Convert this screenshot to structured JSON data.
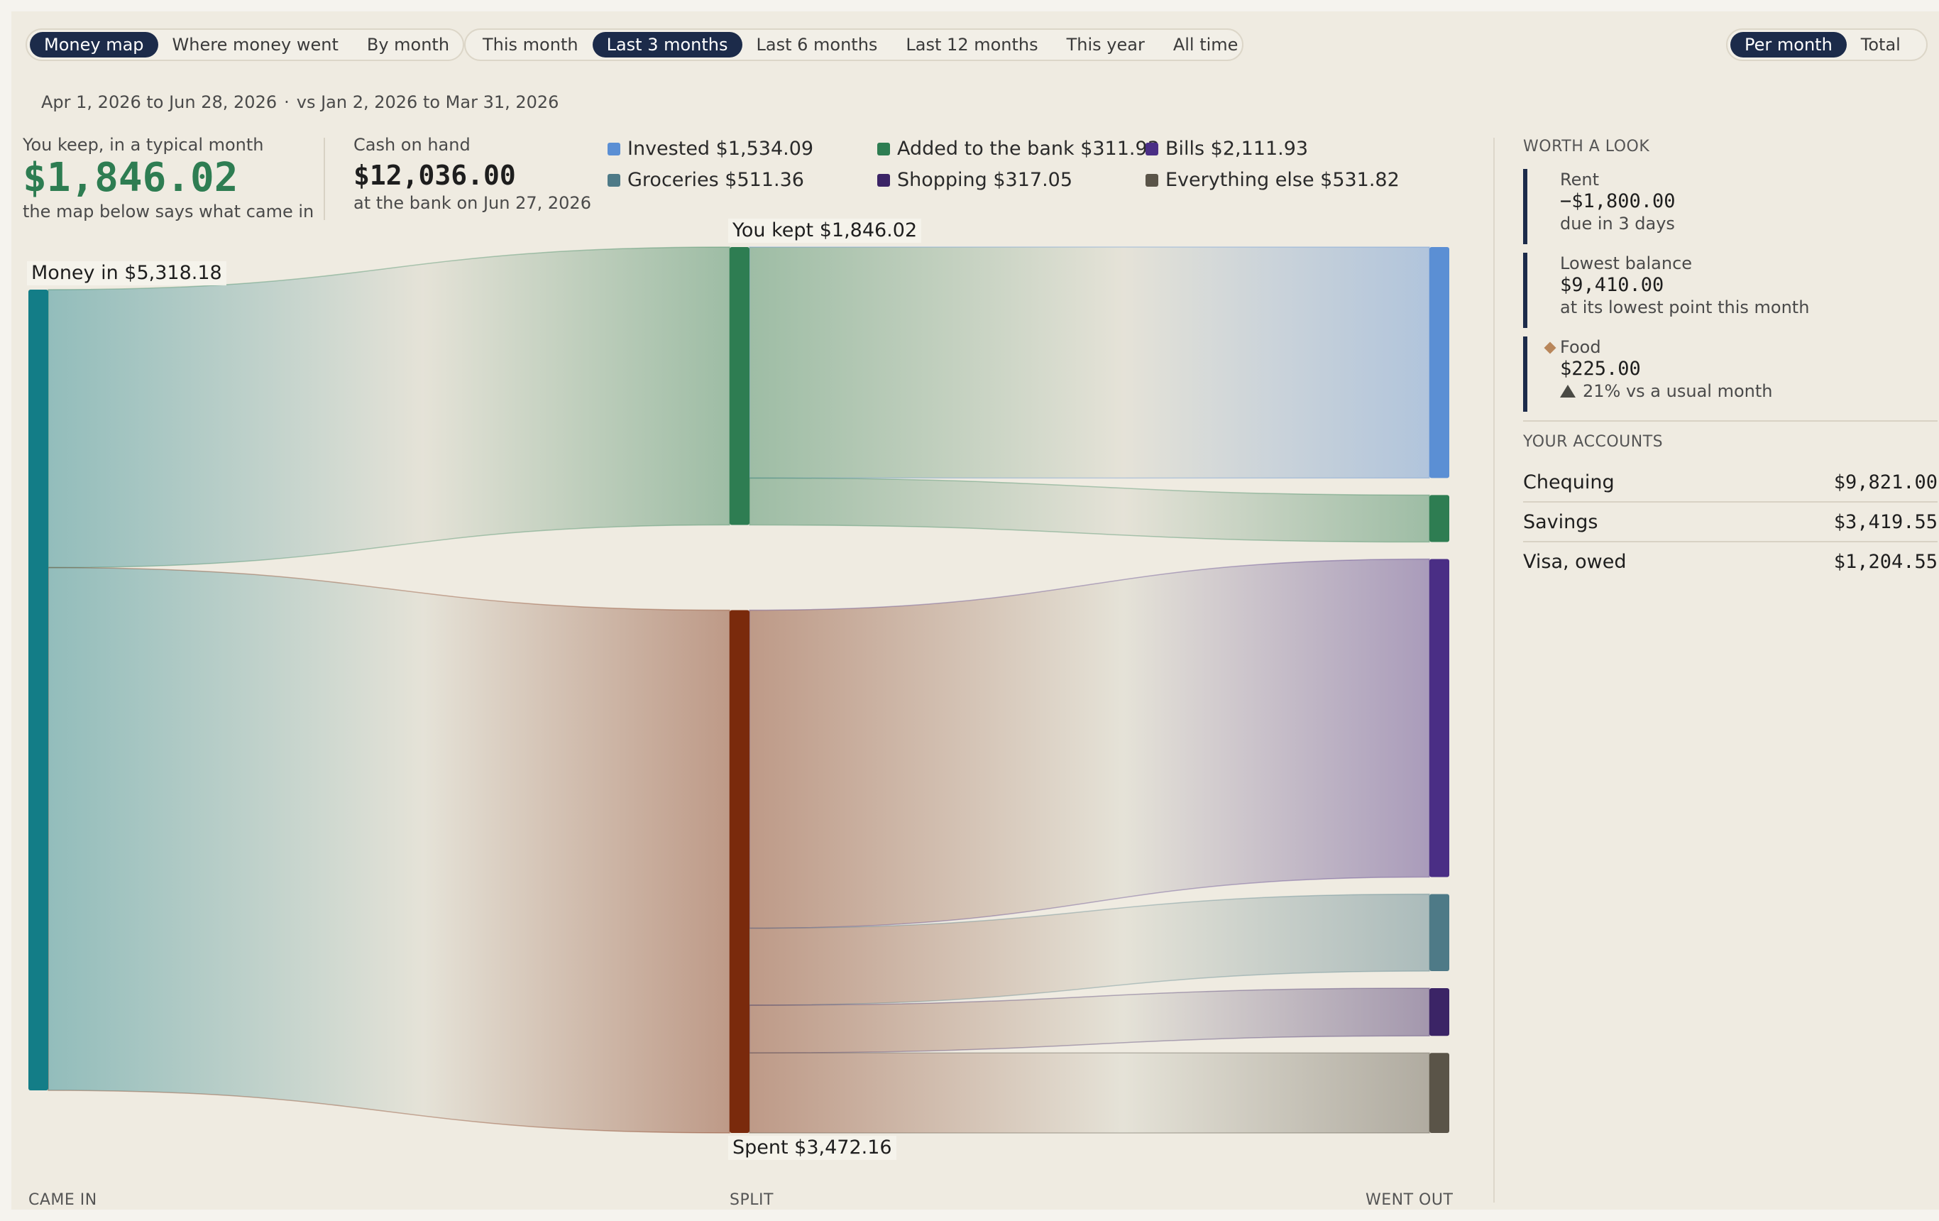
{
  "view_tabs": [
    {
      "label": "Money map",
      "active": true
    },
    {
      "label": "Where money went",
      "active": false
    },
    {
      "label": "By month",
      "active": false
    }
  ],
  "range_tabs": [
    {
      "label": "This month",
      "active": false
    },
    {
      "label": "Last 3 months",
      "active": true
    },
    {
      "label": "Last 6 months",
      "active": false
    },
    {
      "label": "Last 12 months",
      "active": false
    },
    {
      "label": "This year",
      "active": false
    },
    {
      "label": "All time",
      "active": false
    }
  ],
  "mode_tabs": [
    {
      "label": "Per month",
      "active": true
    },
    {
      "label": "Total",
      "active": false
    }
  ],
  "period": {
    "current": "Apr 1, 2026 to Jun 28, 2026",
    "separator": "·",
    "compare": "vs Jan 2, 2026 to Mar 31, 2026"
  },
  "kpi_keep": {
    "label": "You keep, in a typical month",
    "value": "$1,846.02",
    "sub": "the map below says what came in"
  },
  "kpi_cash": {
    "label": "Cash on hand",
    "value": "$12,036.00",
    "sub": "at the bank on Jun 27, 2026"
  },
  "legend": [
    {
      "label": "Invested $1,534.09",
      "color": "#5b8fd4"
    },
    {
      "label": "Groceries $511.36",
      "color": "#4e7a87"
    },
    {
      "label": "Added to the bank $311.93",
      "color": "#2e7d52"
    },
    {
      "label": "Shopping $317.05",
      "color": "#3b2466"
    },
    {
      "label": "Bills $2,111.93",
      "color": "#4a2e85"
    },
    {
      "label": "Everything else $531.82",
      "color": "#5a5448"
    }
  ],
  "chart_data": {
    "type": "sankey",
    "columns": [
      "CAME IN",
      "SPLIT",
      "WENT OUT"
    ],
    "nodes": [
      {
        "id": "in",
        "label": "Money in $5,318.18",
        "value": 5318.18,
        "column": 0,
        "color": "#137d87"
      },
      {
        "id": "kept",
        "label": "You kept $1,846.02",
        "value": 1846.02,
        "column": 1,
        "color": "#2e7d52"
      },
      {
        "id": "spent",
        "label": "Spent $3,472.16",
        "value": 3472.16,
        "column": 1,
        "color": "#7a2a0c"
      },
      {
        "id": "invested",
        "label": "Invested",
        "value": 1534.09,
        "column": 2,
        "color": "#5b8fd4"
      },
      {
        "id": "bank",
        "label": "Added to the bank",
        "value": 311.93,
        "column": 2,
        "color": "#2e7d52"
      },
      {
        "id": "bills",
        "label": "Bills",
        "value": 2111.93,
        "column": 2,
        "color": "#4a2e85"
      },
      {
        "id": "groceries",
        "label": "Groceries",
        "value": 511.36,
        "column": 2,
        "color": "#4e7a87"
      },
      {
        "id": "shopping",
        "label": "Shopping",
        "value": 317.05,
        "column": 2,
        "color": "#3b2466"
      },
      {
        "id": "else",
        "label": "Everything else",
        "value": 531.82,
        "column": 2,
        "color": "#5a5448"
      }
    ],
    "links": [
      {
        "source": "in",
        "target": "kept",
        "value": 1846.02
      },
      {
        "source": "in",
        "target": "spent",
        "value": 3472.16
      },
      {
        "source": "kept",
        "target": "invested",
        "value": 1534.09
      },
      {
        "source": "kept",
        "target": "bank",
        "value": 311.93
      },
      {
        "source": "spent",
        "target": "bills",
        "value": 2111.93
      },
      {
        "source": "spent",
        "target": "groceries",
        "value": 511.36
      },
      {
        "source": "spent",
        "target": "shopping",
        "value": 317.05
      },
      {
        "source": "spent",
        "target": "else",
        "value": 531.82
      }
    ]
  },
  "worth_a_look": {
    "heading": "WORTH A LOOK",
    "cards": [
      {
        "title": "Rent",
        "value": "−$1,800.00",
        "sub": "due in 3 days"
      },
      {
        "title": "Lowest balance",
        "value": "$9,410.00",
        "sub": "at its lowest point this month"
      },
      {
        "title": "Food",
        "value": "$225.00",
        "sub": "21% vs a usual month"
      }
    ]
  },
  "accounts": {
    "heading": "YOUR ACCOUNTS",
    "items": [
      {
        "name": "Chequing",
        "amount": "$9,821.00"
      },
      {
        "name": "Savings",
        "amount": "$3,419.55"
      },
      {
        "name": "Visa, owed",
        "amount": "$1,204.55"
      }
    ]
  },
  "icons": {
    "food_marker": "diamond-icon",
    "trend": "triangle-up-icon"
  }
}
